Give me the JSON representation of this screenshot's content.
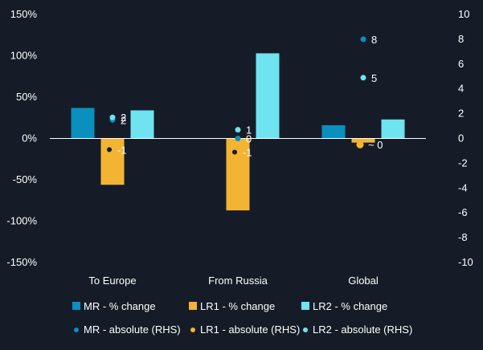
{
  "chart_data": {
    "type": "bar",
    "categories": [
      "To Europe",
      "From Russia",
      "Global"
    ],
    "y_left": {
      "ylim": [
        -150,
        150
      ],
      "ticks": [
        150,
        100,
        50,
        0,
        -50,
        -100,
        -150
      ],
      "tick_labels": [
        "150%",
        "100%",
        "50%",
        "0%",
        "-50%",
        "-100%",
        "-150%"
      ]
    },
    "y_right": {
      "ylim": [
        -10,
        10
      ],
      "ticks": [
        10,
        8,
        6,
        4,
        2,
        0,
        -2,
        -4,
        -6,
        -8,
        -10
      ],
      "tick_labels": [
        "10",
        "8",
        "6",
        "4",
        "2",
        "0",
        "-2",
        "-4",
        "-6",
        "-8",
        "-10"
      ]
    },
    "bar_series": [
      {
        "name": "MR - % change",
        "color": "#0a8fbf",
        "values": [
          37,
          0,
          16
        ]
      },
      {
        "name": "LR1 - % change",
        "color": "#f4b433",
        "values": [
          -56,
          -87,
          -5
        ]
      },
      {
        "name": "LR2 - % change",
        "color": "#6fe3f0",
        "values": [
          34,
          103,
          23
        ]
      }
    ],
    "point_series": [
      {
        "name": "MR - absolute (RHS)",
        "color": "#0a8fbf",
        "values": [
          1.5,
          0,
          8
        ],
        "labels": [
          "2",
          "0",
          "8"
        ]
      },
      {
        "name": "LR1 - absolute (RHS)",
        "color": "#f4b433",
        "values": [
          -0.9,
          -1.1,
          -0.5
        ],
        "labels": [
          "-1",
          "-1",
          "~ 0"
        ]
      },
      {
        "name": "LR2 - absolute (RHS)",
        "color": "#6fe3f0",
        "values": [
          1.7,
          0.7,
          4.9
        ],
        "labels": [
          "2",
          "1",
          "5"
        ]
      }
    ],
    "legend_position": "bottom",
    "grid": false
  }
}
